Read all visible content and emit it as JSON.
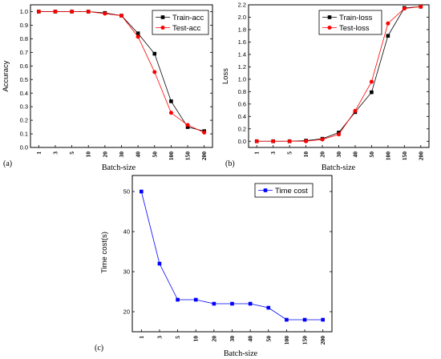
{
  "chart_data": [
    {
      "type": "line",
      "panel_label": "(a)",
      "categories": [
        "1",
        "3",
        "5",
        "10",
        "20",
        "30",
        "40",
        "50",
        "100",
        "150",
        "200"
      ],
      "xlabel": "Batch-size",
      "ylabel": "Accuracy",
      "ylim": [
        0.0,
        1.05
      ],
      "yticks": [
        "0.0",
        "0.1",
        "0.2",
        "0.3",
        "0.4",
        "0.5",
        "0.6",
        "0.7",
        "0.8",
        "0.9",
        "1.0"
      ],
      "legend_position": "top-right",
      "series": [
        {
          "name": "Train-acc",
          "color": "#000000",
          "marker": "square",
          "values": [
            1.0,
            1.0,
            1.0,
            1.0,
            0.99,
            0.97,
            0.84,
            0.69,
            0.34,
            0.15,
            0.12
          ]
        },
        {
          "name": "Test-acc",
          "color": "#ff0000",
          "marker": "circle",
          "values": [
            1.0,
            1.0,
            1.0,
            1.0,
            0.985,
            0.97,
            0.815,
            0.555,
            0.255,
            0.165,
            0.11
          ]
        }
      ]
    },
    {
      "type": "line",
      "panel_label": "(b)",
      "categories": [
        "1",
        "3",
        "5",
        "10",
        "20",
        "30",
        "40",
        "50",
        "100",
        "150",
        "200"
      ],
      "xlabel": "Batch-size",
      "ylabel": "Loss",
      "ylim": [
        -0.1,
        2.2
      ],
      "yticks": [
        "0.0",
        "0.2",
        "0.4",
        "0.6",
        "0.8",
        "1.0",
        "1.2",
        "1.4",
        "1.6",
        "1.8",
        "2.0",
        "2.2"
      ],
      "legend_position": "top-left",
      "series": [
        {
          "name": "Train-loss",
          "color": "#000000",
          "marker": "square",
          "values": [
            0.0,
            0.0,
            0.0,
            0.01,
            0.04,
            0.14,
            0.47,
            0.79,
            1.7,
            2.15,
            2.17
          ]
        },
        {
          "name": "Test-loss",
          "color": "#ff0000",
          "marker": "circle",
          "values": [
            0.0,
            0.0,
            0.0,
            0.0,
            0.03,
            0.11,
            0.49,
            0.96,
            1.9,
            2.14,
            2.17
          ]
        }
      ]
    },
    {
      "type": "line",
      "panel_label": "(c)",
      "categories": [
        "1",
        "3",
        "5",
        "10",
        "20",
        "30",
        "40",
        "50",
        "100",
        "150",
        "200"
      ],
      "xlabel": "Batch-size",
      "ylabel": "Time cost(s)",
      "ylim": [
        15,
        54
      ],
      "yticks": [
        "20",
        "30",
        "40",
        "50"
      ],
      "legend_position": "top-right",
      "series": [
        {
          "name": "Time cost",
          "color": "#0000ff",
          "marker": "square",
          "values": [
            50,
            32,
            23,
            23,
            22,
            22,
            22,
            21,
            18,
            18,
            18
          ]
        }
      ]
    }
  ]
}
